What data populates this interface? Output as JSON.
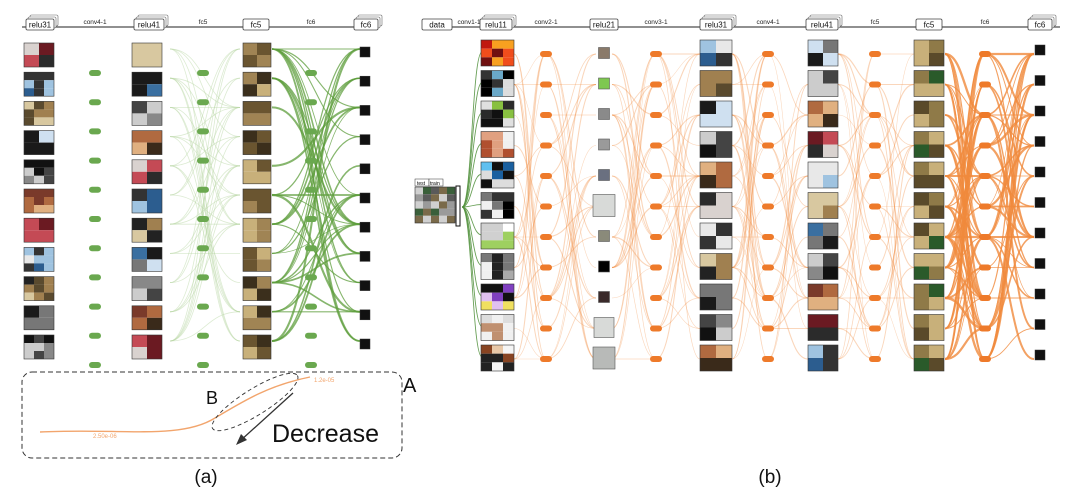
{
  "panel_a": {
    "caption": "(a)",
    "layers": [
      {
        "label": "relu31",
        "kind": "stack"
      },
      {
        "label": "conv4-1",
        "kind": "op"
      },
      {
        "label": "relu41",
        "kind": "stack"
      },
      {
        "label": "fc5",
        "kind": "op"
      },
      {
        "label": "fc5",
        "kind": "single"
      },
      {
        "label": "fc6",
        "kind": "op"
      },
      {
        "label": "fc6",
        "kind": "stack"
      }
    ],
    "edge_color": "#5e9e3c",
    "node_color": "#6aa84f",
    "inset": {
      "label_a": "A",
      "label_b": "B",
      "arrow_text": "Decrease",
      "value_high": "1.2e-05",
      "value_low": "2.50e-06",
      "curve_color": "#f2a56d"
    }
  },
  "panel_b": {
    "caption": "(b)",
    "input_label": "data",
    "input_sub": [
      "test",
      "train"
    ],
    "layers": [
      {
        "label": "conv1-1",
        "kind": "op"
      },
      {
        "label": "relu11",
        "kind": "stack"
      },
      {
        "label": "conv2-1",
        "kind": "op"
      },
      {
        "label": "relu21",
        "kind": "single"
      },
      {
        "label": "conv3-1",
        "kind": "op"
      },
      {
        "label": "relu31",
        "kind": "stack"
      },
      {
        "label": "conv4-1",
        "kind": "op"
      },
      {
        "label": "relu41",
        "kind": "stack"
      },
      {
        "label": "fc5",
        "kind": "op"
      },
      {
        "label": "fc5",
        "kind": "single"
      },
      {
        "label": "fc6",
        "kind": "op"
      },
      {
        "label": "fc6",
        "kind": "stack"
      }
    ],
    "edge_color": "#f08a3c",
    "node_color": "#ee7a2a",
    "input_edge_color": "#4f8f3a"
  }
}
